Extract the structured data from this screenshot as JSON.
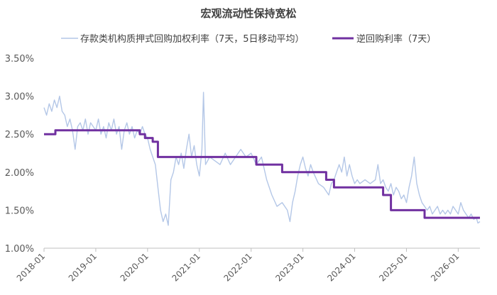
{
  "chart_data": {
    "type": "line",
    "title": "宏观流动性保持宽松",
    "xlabel": "",
    "ylabel": "",
    "x_ticks": [
      "2018-01",
      "2019-01",
      "2020-01",
      "2021-01",
      "2022-01",
      "2023-01",
      "2024-01",
      "2025-01",
      "2026-01"
    ],
    "y_ticks": [
      "1.00%",
      "1.50%",
      "2.00%",
      "2.50%",
      "3.00%",
      "3.50%"
    ],
    "xlim": [
      2018.0,
      2026.42
    ],
    "ylim": [
      1.0,
      3.5
    ],
    "grid": false,
    "legend_position": "top",
    "series": [
      {
        "name": "存款类机构质押式回购加权利率（7天，5日移动平均）",
        "color": "#b4c7e7",
        "style": "thin",
        "points": [
          [
            2018.0,
            2.85
          ],
          [
            2018.05,
            2.75
          ],
          [
            2018.1,
            2.9
          ],
          [
            2018.15,
            2.8
          ],
          [
            2018.2,
            2.95
          ],
          [
            2018.25,
            2.85
          ],
          [
            2018.3,
            3.0
          ],
          [
            2018.35,
            2.8
          ],
          [
            2018.4,
            2.75
          ],
          [
            2018.45,
            2.6
          ],
          [
            2018.5,
            2.7
          ],
          [
            2018.55,
            2.55
          ],
          [
            2018.6,
            2.3
          ],
          [
            2018.65,
            2.6
          ],
          [
            2018.7,
            2.65
          ],
          [
            2018.75,
            2.55
          ],
          [
            2018.8,
            2.7
          ],
          [
            2018.85,
            2.5
          ],
          [
            2018.9,
            2.65
          ],
          [
            2018.95,
            2.6
          ],
          [
            2019.0,
            2.55
          ],
          [
            2019.05,
            2.7
          ],
          [
            2019.1,
            2.5
          ],
          [
            2019.15,
            2.6
          ],
          [
            2019.2,
            2.45
          ],
          [
            2019.25,
            2.65
          ],
          [
            2019.3,
            2.55
          ],
          [
            2019.35,
            2.7
          ],
          [
            2019.4,
            2.5
          ],
          [
            2019.45,
            2.6
          ],
          [
            2019.5,
            2.3
          ],
          [
            2019.55,
            2.55
          ],
          [
            2019.6,
            2.65
          ],
          [
            2019.65,
            2.5
          ],
          [
            2019.7,
            2.6
          ],
          [
            2019.75,
            2.45
          ],
          [
            2019.8,
            2.55
          ],
          [
            2019.85,
            2.5
          ],
          [
            2019.9,
            2.6
          ],
          [
            2019.95,
            2.5
          ],
          [
            2020.0,
            2.45
          ],
          [
            2020.05,
            2.3
          ],
          [
            2020.1,
            2.2
          ],
          [
            2020.15,
            2.1
          ],
          [
            2020.2,
            1.8
          ],
          [
            2020.25,
            1.5
          ],
          [
            2020.3,
            1.35
          ],
          [
            2020.35,
            1.45
          ],
          [
            2020.4,
            1.3
          ],
          [
            2020.45,
            1.9
          ],
          [
            2020.5,
            2.0
          ],
          [
            2020.55,
            2.2
          ],
          [
            2020.6,
            2.1
          ],
          [
            2020.65,
            2.25
          ],
          [
            2020.7,
            2.05
          ],
          [
            2020.75,
            2.3
          ],
          [
            2020.8,
            2.5
          ],
          [
            2020.85,
            2.2
          ],
          [
            2020.9,
            2.35
          ],
          [
            2020.95,
            2.1
          ],
          [
            2021.0,
            1.95
          ],
          [
            2021.05,
            2.3
          ],
          [
            2021.08,
            3.05
          ],
          [
            2021.12,
            2.1
          ],
          [
            2021.2,
            2.2
          ],
          [
            2021.3,
            2.15
          ],
          [
            2021.4,
            2.1
          ],
          [
            2021.5,
            2.25
          ],
          [
            2021.6,
            2.1
          ],
          [
            2021.7,
            2.2
          ],
          [
            2021.8,
            2.3
          ],
          [
            2021.9,
            2.2
          ],
          [
            2022.0,
            2.25
          ],
          [
            2022.1,
            2.1
          ],
          [
            2022.2,
            2.2
          ],
          [
            2022.3,
            1.9
          ],
          [
            2022.4,
            1.7
          ],
          [
            2022.5,
            1.55
          ],
          [
            2022.6,
            1.6
          ],
          [
            2022.7,
            1.5
          ],
          [
            2022.75,
            1.35
          ],
          [
            2022.8,
            1.6
          ],
          [
            2022.85,
            1.75
          ],
          [
            2022.9,
            1.95
          ],
          [
            2022.95,
            2.1
          ],
          [
            2023.0,
            2.2
          ],
          [
            2023.05,
            2.05
          ],
          [
            2023.1,
            1.95
          ],
          [
            2023.15,
            2.1
          ],
          [
            2023.2,
            2.0
          ],
          [
            2023.3,
            1.85
          ],
          [
            2023.4,
            1.8
          ],
          [
            2023.5,
            1.7
          ],
          [
            2023.55,
            1.85
          ],
          [
            2023.6,
            1.9
          ],
          [
            2023.65,
            2.0
          ],
          [
            2023.7,
            2.1
          ],
          [
            2023.75,
            2.0
          ],
          [
            2023.8,
            2.2
          ],
          [
            2023.85,
            1.95
          ],
          [
            2023.9,
            2.1
          ],
          [
            2023.95,
            1.95
          ],
          [
            2024.0,
            1.85
          ],
          [
            2024.05,
            1.9
          ],
          [
            2024.1,
            1.85
          ],
          [
            2024.2,
            1.9
          ],
          [
            2024.3,
            1.85
          ],
          [
            2024.4,
            1.9
          ],
          [
            2024.45,
            2.1
          ],
          [
            2024.5,
            1.85
          ],
          [
            2024.55,
            1.9
          ],
          [
            2024.6,
            1.8
          ],
          [
            2024.65,
            1.75
          ],
          [
            2024.7,
            1.85
          ],
          [
            2024.75,
            1.7
          ],
          [
            2024.8,
            1.8
          ],
          [
            2024.85,
            1.75
          ],
          [
            2024.9,
            1.65
          ],
          [
            2024.95,
            1.7
          ],
          [
            2025.0,
            1.6
          ],
          [
            2025.05,
            1.8
          ],
          [
            2025.1,
            1.95
          ],
          [
            2025.15,
            2.2
          ],
          [
            2025.2,
            1.85
          ],
          [
            2025.25,
            1.7
          ],
          [
            2025.3,
            1.6
          ],
          [
            2025.35,
            1.55
          ],
          [
            2025.4,
            1.5
          ],
          [
            2025.45,
            1.55
          ],
          [
            2025.5,
            1.45
          ],
          [
            2025.55,
            1.5
          ],
          [
            2025.6,
            1.55
          ],
          [
            2025.65,
            1.45
          ],
          [
            2025.7,
            1.5
          ],
          [
            2025.75,
            1.45
          ],
          [
            2025.8,
            1.5
          ],
          [
            2025.85,
            1.45
          ],
          [
            2025.9,
            1.55
          ],
          [
            2025.95,
            1.5
          ],
          [
            2026.0,
            1.45
          ],
          [
            2026.05,
            1.6
          ],
          [
            2026.1,
            1.5
          ],
          [
            2026.15,
            1.45
          ],
          [
            2026.2,
            1.4
          ],
          [
            2026.25,
            1.45
          ],
          [
            2026.3,
            1.38
          ],
          [
            2026.35,
            1.4
          ],
          [
            2026.38,
            1.33
          ],
          [
            2026.42,
            1.35
          ]
        ]
      },
      {
        "name": "逆回购利率（7天）",
        "color": "#7030a0",
        "style": "step",
        "points": [
          [
            2018.0,
            2.5
          ],
          [
            2018.22,
            2.55
          ],
          [
            2019.85,
            2.5
          ],
          [
            2019.95,
            2.45
          ],
          [
            2020.1,
            2.4
          ],
          [
            2020.2,
            2.2
          ],
          [
            2022.0,
            2.2
          ],
          [
            2022.1,
            2.1
          ],
          [
            2022.6,
            2.0
          ],
          [
            2023.45,
            1.9
          ],
          [
            2023.6,
            1.8
          ],
          [
            2024.55,
            1.7
          ],
          [
            2024.7,
            1.5
          ],
          [
            2025.35,
            1.4
          ],
          [
            2026.42,
            1.4
          ]
        ]
      }
    ]
  }
}
